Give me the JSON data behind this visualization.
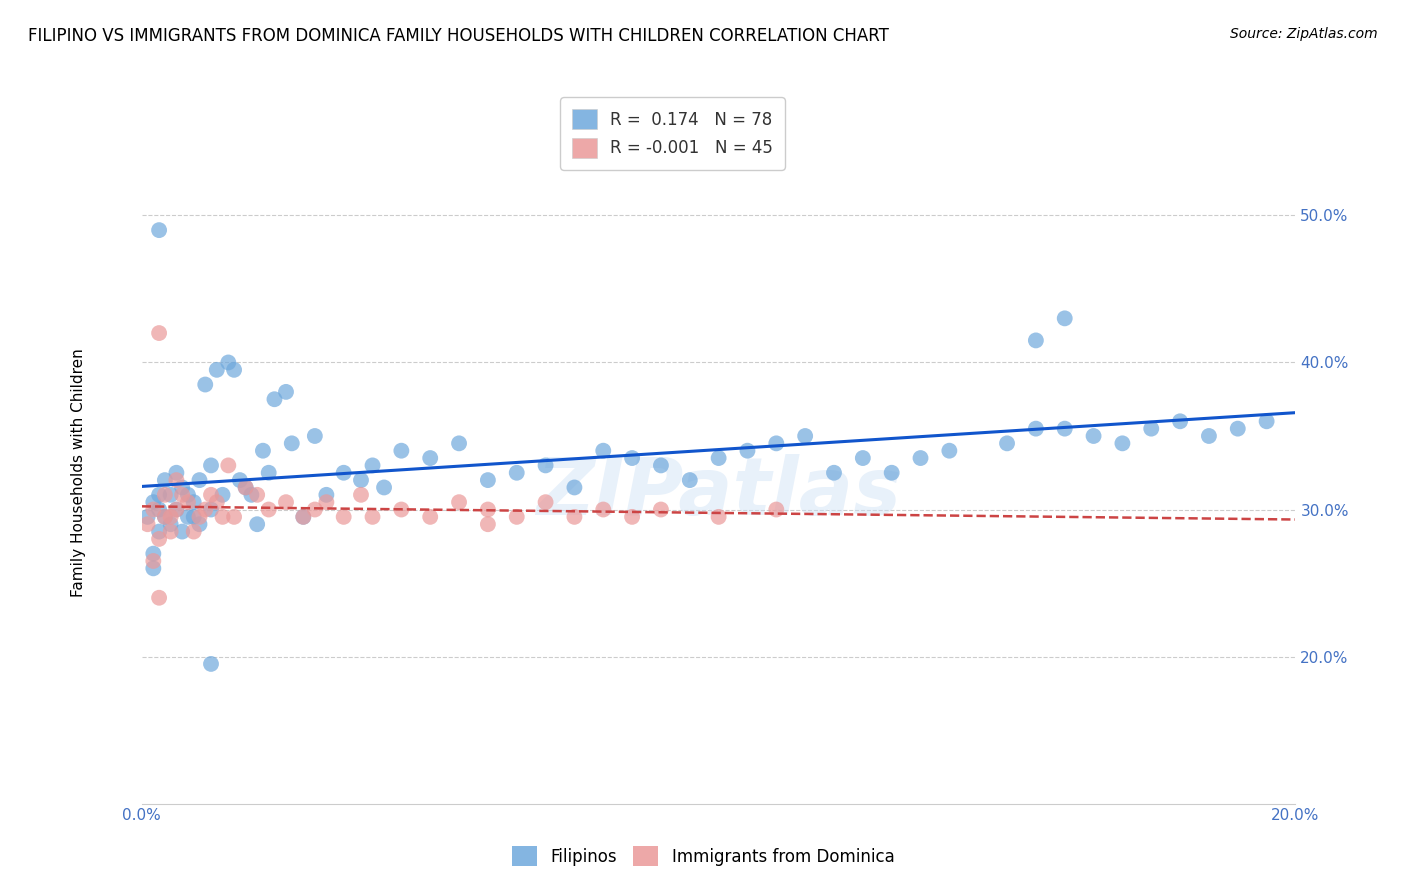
{
  "title": "FILIPINO VS IMMIGRANTS FROM DOMINICA FAMILY HOUSEHOLDS WITH CHILDREN CORRELATION CHART",
  "source": "Source: ZipAtlas.com",
  "ylabel": "Family Households with Children",
  "xlim": [
    0.0,
    0.2
  ],
  "ylim": [
    0.1,
    0.55
  ],
  "yticks": [
    0.2,
    0.3,
    0.4,
    0.5
  ],
  "ytick_labels": [
    "20.0%",
    "30.0%",
    "40.0%",
    "50.0%"
  ],
  "xticks": [
    0.0,
    0.04,
    0.08,
    0.12,
    0.16,
    0.2
  ],
  "xtick_labels": [
    "0.0%",
    "",
    "",
    "",
    "",
    "20.0%"
  ],
  "r_filipino": 0.174,
  "n_filipino": 78,
  "r_dominica": -0.001,
  "n_dominica": 45,
  "filipino_color": "#6fa8dc",
  "dominica_color": "#ea9999",
  "trend_filipino_color": "#1155cc",
  "trend_dominica_color": "#cc4444",
  "watermark": "ZIPatlas",
  "filipino_scatter_x": [
    0.001,
    0.002,
    0.002,
    0.002,
    0.003,
    0.003,
    0.003,
    0.004,
    0.004,
    0.005,
    0.005,
    0.006,
    0.006,
    0.007,
    0.007,
    0.008,
    0.008,
    0.009,
    0.009,
    0.01,
    0.01,
    0.011,
    0.012,
    0.012,
    0.013,
    0.014,
    0.015,
    0.016,
    0.017,
    0.018,
    0.019,
    0.02,
    0.021,
    0.022,
    0.023,
    0.025,
    0.026,
    0.028,
    0.03,
    0.032,
    0.035,
    0.038,
    0.04,
    0.042,
    0.045,
    0.05,
    0.055,
    0.06,
    0.065,
    0.07,
    0.075,
    0.08,
    0.085,
    0.09,
    0.095,
    0.1,
    0.105,
    0.11,
    0.115,
    0.12,
    0.125,
    0.13,
    0.135,
    0.14,
    0.15,
    0.155,
    0.16,
    0.165,
    0.17,
    0.175,
    0.18,
    0.185,
    0.19,
    0.195,
    0.003,
    0.012,
    0.155,
    0.16
  ],
  "filipino_scatter_y": [
    0.295,
    0.26,
    0.305,
    0.27,
    0.3,
    0.285,
    0.31,
    0.295,
    0.32,
    0.29,
    0.31,
    0.3,
    0.325,
    0.285,
    0.315,
    0.295,
    0.31,
    0.295,
    0.305,
    0.29,
    0.32,
    0.385,
    0.3,
    0.33,
    0.395,
    0.31,
    0.4,
    0.395,
    0.32,
    0.315,
    0.31,
    0.29,
    0.34,
    0.325,
    0.375,
    0.38,
    0.345,
    0.295,
    0.35,
    0.31,
    0.325,
    0.32,
    0.33,
    0.315,
    0.34,
    0.335,
    0.345,
    0.32,
    0.325,
    0.33,
    0.315,
    0.34,
    0.335,
    0.33,
    0.32,
    0.335,
    0.34,
    0.345,
    0.35,
    0.325,
    0.335,
    0.325,
    0.335,
    0.34,
    0.345,
    0.355,
    0.355,
    0.35,
    0.345,
    0.355,
    0.36,
    0.35,
    0.355,
    0.36,
    0.49,
    0.195,
    0.415,
    0.43
  ],
  "dominica_scatter_x": [
    0.001,
    0.002,
    0.002,
    0.003,
    0.003,
    0.004,
    0.004,
    0.005,
    0.005,
    0.006,
    0.006,
    0.007,
    0.008,
    0.009,
    0.01,
    0.011,
    0.012,
    0.013,
    0.014,
    0.015,
    0.016,
    0.018,
    0.02,
    0.022,
    0.025,
    0.028,
    0.03,
    0.032,
    0.035,
    0.038,
    0.04,
    0.045,
    0.05,
    0.055,
    0.06,
    0.065,
    0.07,
    0.075,
    0.08,
    0.085,
    0.09,
    0.1,
    0.11,
    0.003,
    0.06
  ],
  "dominica_scatter_y": [
    0.29,
    0.3,
    0.265,
    0.42,
    0.28,
    0.31,
    0.295,
    0.285,
    0.295,
    0.3,
    0.32,
    0.31,
    0.305,
    0.285,
    0.295,
    0.3,
    0.31,
    0.305,
    0.295,
    0.33,
    0.295,
    0.315,
    0.31,
    0.3,
    0.305,
    0.295,
    0.3,
    0.305,
    0.295,
    0.31,
    0.295,
    0.3,
    0.295,
    0.305,
    0.3,
    0.295,
    0.305,
    0.295,
    0.3,
    0.295,
    0.3,
    0.295,
    0.3,
    0.24,
    0.29
  ],
  "background_color": "#ffffff",
  "grid_color": "#cccccc",
  "axis_color": "#4472c4",
  "title_fontsize": 12,
  "label_fontsize": 11,
  "tick_fontsize": 11,
  "legend_fontsize": 12
}
